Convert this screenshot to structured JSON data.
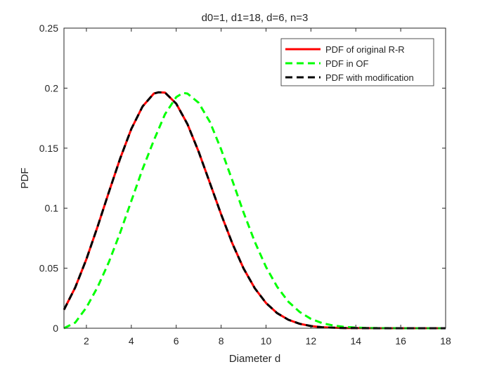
{
  "chart_data": {
    "type": "line",
    "title": "d0=1, d1=18, d=6, n=3",
    "xlabel": "Diameter d",
    "ylabel": "PDF",
    "xlim": [
      1,
      18
    ],
    "ylim": [
      0,
      0.25
    ],
    "xticks": [
      2,
      4,
      6,
      8,
      10,
      12,
      14,
      16,
      18
    ],
    "xtick_labels": [
      "2",
      "4",
      "6",
      "8",
      "10",
      "12",
      "14",
      "16",
      "18"
    ],
    "yticks": [
      0,
      0.05,
      0.1,
      0.15,
      0.2,
      0.25
    ],
    "ytick_labels": [
      "0",
      "0.05",
      "0.1",
      "0.15",
      "0.2",
      "0.25"
    ],
    "grid": false,
    "legend_position": "top-right",
    "series": [
      {
        "name": "PDF of original R-R",
        "color": "#ff0000",
        "style": "solid",
        "x": [
          1,
          1.5,
          2,
          2.5,
          3,
          3.5,
          4,
          4.5,
          5,
          5.2,
          5.5,
          6,
          6.5,
          7,
          7.5,
          8,
          8.5,
          9,
          9.5,
          10,
          10.5,
          11,
          11.5,
          12,
          12.5,
          13,
          13.5,
          14,
          15,
          16,
          17,
          18
        ],
        "y": [
          0.0154,
          0.0339,
          0.0575,
          0.0847,
          0.1134,
          0.1413,
          0.166,
          0.1847,
          0.1955,
          0.1965,
          0.1963,
          0.1871,
          0.17,
          0.1471,
          0.1211,
          0.0949,
          0.0706,
          0.0498,
          0.0333,
          0.021,
          0.0125,
          0.007,
          0.0037,
          0.0018,
          0.0008,
          0.0004,
          0.0001,
          0.0001,
          0,
          0,
          0,
          0
        ]
      },
      {
        "name": "PDF in OF",
        "color": "#00ff00",
        "style": "dashed",
        "x": [
          1,
          1.5,
          2,
          2.5,
          3,
          3.5,
          4,
          4.5,
          5,
          5.5,
          6,
          6.3,
          6.5,
          7,
          7.5,
          8,
          8.5,
          9,
          9.5,
          10,
          10.5,
          11,
          11.5,
          12,
          12.5,
          13,
          13.5,
          14,
          14.5,
          15,
          16,
          17,
          18
        ],
        "y": [
          0,
          0.0047,
          0.0173,
          0.0343,
          0.0551,
          0.0795,
          0.106,
          0.1325,
          0.1564,
          0.1782,
          0.1925,
          0.196,
          0.1955,
          0.1878,
          0.1719,
          0.149,
          0.123,
          0.0965,
          0.072,
          0.051,
          0.0345,
          0.022,
          0.0135,
          0.0078,
          0.0043,
          0.0022,
          0.0011,
          0.0005,
          0.0002,
          0.0001,
          0,
          0,
          0
        ]
      },
      {
        "name": "PDF with modification",
        "color": "#000000",
        "style": "dashed",
        "x": [
          1,
          1.5,
          2,
          2.5,
          3,
          3.5,
          4,
          4.5,
          5,
          5.2,
          5.5,
          6,
          6.5,
          7,
          7.5,
          8,
          8.5,
          9,
          9.5,
          10,
          10.5,
          11,
          11.5,
          12,
          12.5,
          13,
          13.5,
          14,
          15,
          16,
          17,
          18
        ],
        "y": [
          0.0154,
          0.0339,
          0.0575,
          0.0847,
          0.1134,
          0.1413,
          0.166,
          0.1847,
          0.1955,
          0.1965,
          0.1963,
          0.1871,
          0.17,
          0.1471,
          0.1211,
          0.0949,
          0.0706,
          0.0498,
          0.0333,
          0.021,
          0.0125,
          0.007,
          0.0037,
          0.0018,
          0.0008,
          0.0004,
          0.0001,
          0.0001,
          0,
          0,
          0,
          0
        ]
      }
    ]
  }
}
